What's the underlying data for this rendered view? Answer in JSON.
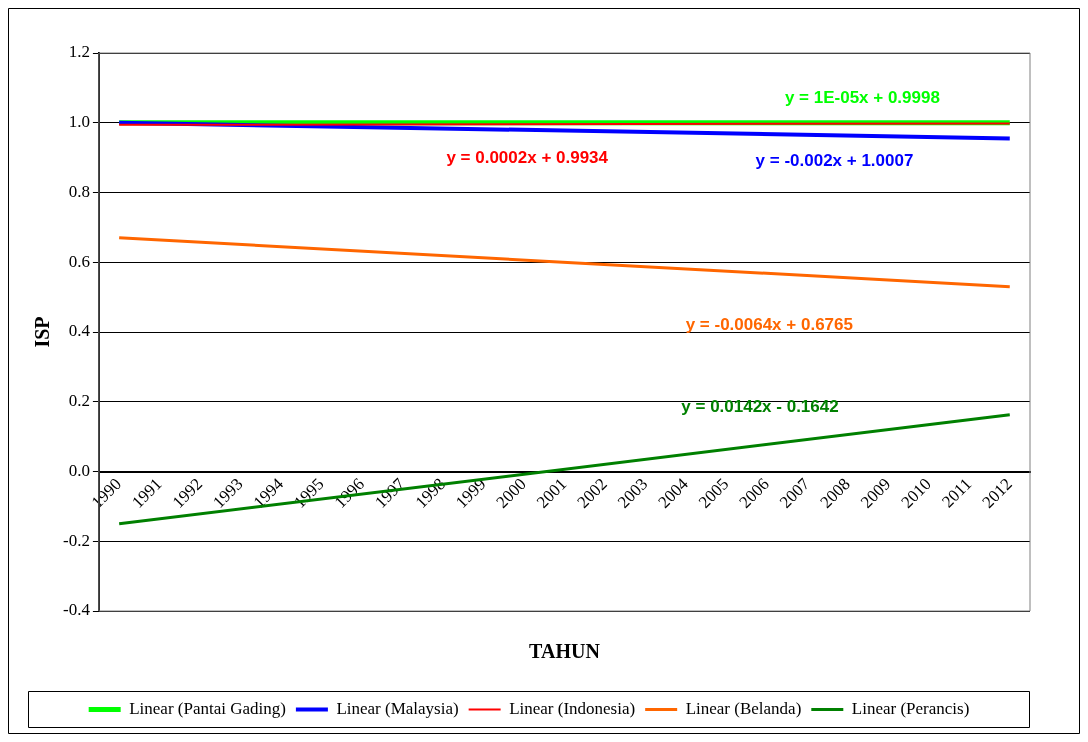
{
  "chart_data": {
    "type": "line",
    "xlabel": "TAHUN",
    "ylabel": "ISP",
    "categories": [
      "1990",
      "1991",
      "1992",
      "1993",
      "1994",
      "1995",
      "1996",
      "1997",
      "1998",
      "1999",
      "2000",
      "2001",
      "2002",
      "2003",
      "2004",
      "2005",
      "2006",
      "2007",
      "2008",
      "2009",
      "2010",
      "2011",
      "2012"
    ],
    "series": [
      {
        "name": "Linear (Pantai Gading)",
        "color": "#00ff00",
        "values": [
          1.0,
          null,
          null,
          null,
          null,
          null,
          null,
          null,
          null,
          null,
          null,
          null,
          null,
          null,
          null,
          null,
          null,
          null,
          null,
          null,
          null,
          null,
          1.0
        ]
      },
      {
        "name": "Linear (Malaysia)",
        "color": "#0000ff",
        "values": [
          1.0,
          null,
          null,
          null,
          null,
          null,
          null,
          null,
          null,
          null,
          null,
          null,
          null,
          null,
          null,
          null,
          null,
          null,
          null,
          null,
          null,
          null,
          0.955
        ]
      },
      {
        "name": "Linear (Indonesia)",
        "color": "#ff0000",
        "values": [
          0.994,
          null,
          null,
          null,
          null,
          null,
          null,
          null,
          null,
          null,
          null,
          null,
          null,
          null,
          null,
          null,
          null,
          null,
          null,
          null,
          null,
          null,
          0.998
        ]
      },
      {
        "name": "Linear (Belanda)",
        "color": "#ff6600",
        "values": [
          0.67,
          null,
          null,
          null,
          null,
          null,
          null,
          null,
          null,
          null,
          null,
          null,
          null,
          null,
          null,
          null,
          null,
          null,
          null,
          null,
          null,
          null,
          0.53
        ]
      },
      {
        "name": "Linear (Perancis)",
        "color": "#008000",
        "values": [
          -0.15,
          null,
          null,
          null,
          null,
          null,
          null,
          null,
          null,
          null,
          null,
          null,
          null,
          null,
          null,
          null,
          null,
          null,
          null,
          null,
          null,
          null,
          0.163
        ]
      }
    ],
    "ylim": [
      -0.4,
      1.2
    ],
    "yticks": [
      {
        "value": -0.4,
        "label": "-0.4"
      },
      {
        "value": -0.2,
        "label": "-0.2"
      },
      {
        "value": 0,
        "label": "0.0"
      },
      {
        "value": 0.2,
        "label": "0.2"
      },
      {
        "value": 0.4,
        "label": "0.4"
      },
      {
        "value": 0.6,
        "label": "0.6"
      },
      {
        "value": 0.8,
        "label": "0.8"
      },
      {
        "value": 1,
        "label": "1.0"
      },
      {
        "value": 1.2,
        "label": "1.2"
      }
    ],
    "annotations": [
      "y = 1E-05x + 0.9998",
      "y = -0.002x + 1.0007",
      "y = 0.0002x + 0.9934",
      "y = -0.0064x + 0.6765",
      "y = 0.0142x - 0.1642"
    ],
    "grid": "y",
    "legend": "bottom",
    "marker": "none",
    "line_style": "solid"
  }
}
